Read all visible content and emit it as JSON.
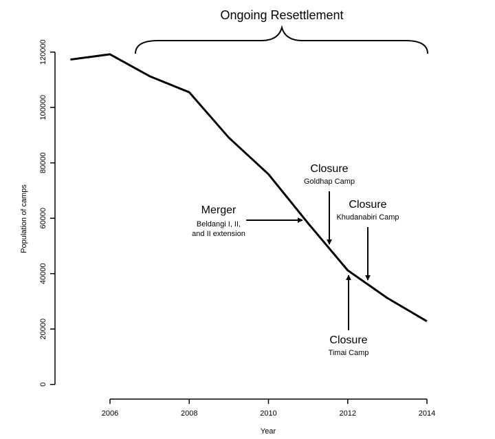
{
  "chart_data": {
    "type": "line",
    "title": "Ongoing Resettlement",
    "xlabel": "Year",
    "ylabel": "Population of camps",
    "x": [
      2005,
      2006,
      2007,
      2008,
      2009,
      2010,
      2011,
      2012,
      2013,
      2014
    ],
    "values": [
      117300,
      119200,
      111300,
      105500,
      89100,
      75900,
      58200,
      41200,
      31200,
      22800
    ],
    "xlim": [
      2005,
      2014
    ],
    "ylim": [
      0,
      120000
    ],
    "xticks": [
      2006,
      2008,
      2010,
      2012,
      2014
    ],
    "yticks": [
      0,
      20000,
      40000,
      60000,
      80000,
      100000,
      120000
    ],
    "grid": false,
    "bracket": {
      "from": 2006.65,
      "to": 2014
    },
    "annotations": [
      {
        "title": "Merger",
        "lines": [
          "Beldangi I, II,",
          "and II extension"
        ],
        "x": 2010.9
      },
      {
        "title": "Closure",
        "lines": [
          "Goldhap Camp"
        ],
        "x": 2011.55
      },
      {
        "title": "Closure",
        "lines": [
          "Khudanabiri Camp"
        ],
        "x": 2012.5
      },
      {
        "title": "Closure",
        "lines": [
          "Timai Camp"
        ],
        "x": 2012.05
      }
    ]
  }
}
